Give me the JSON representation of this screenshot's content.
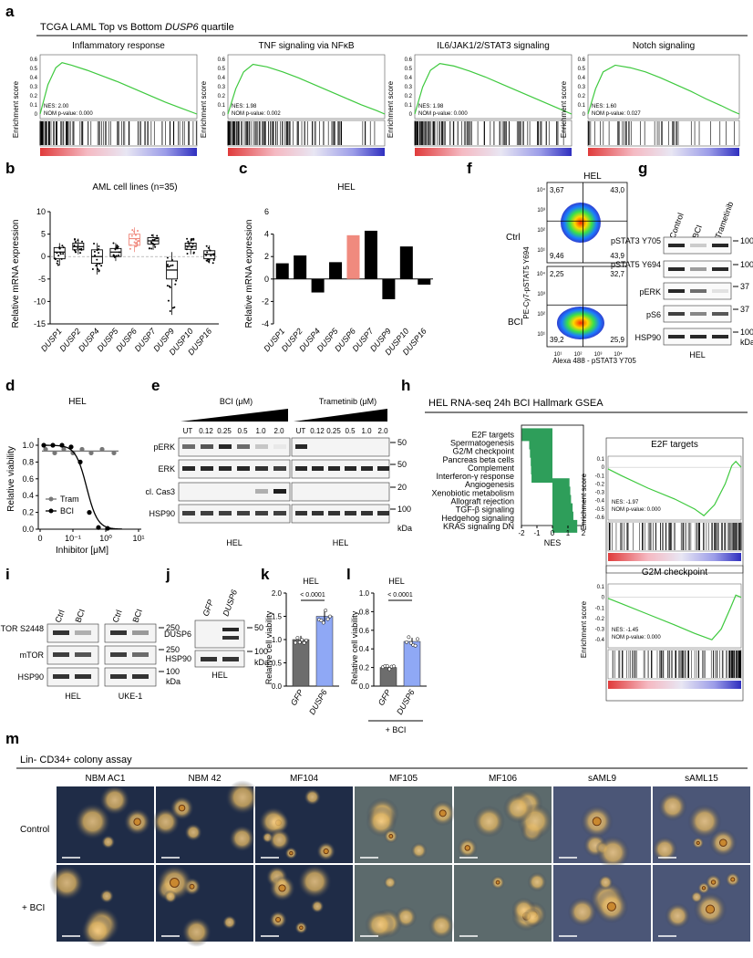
{
  "figure": {
    "panel_labels": {
      "a": "a",
      "b": "b",
      "c": "c",
      "d": "d",
      "e": "e",
      "f": "f",
      "g": "g",
      "h": "h",
      "i": "i",
      "j": "j",
      "k": "k",
      "l": "l",
      "m": "m"
    },
    "a": {
      "header_prefix": "TCGA LAML Top vs Bottom ",
      "header_gene": "DUSP6",
      "header_suffix": " quartile",
      "ylabel": "Enrichment score",
      "gsea": [
        {
          "title": "Inflammatory response",
          "nes": "NES: 2.00",
          "p": "NOM p-value: 0.000",
          "curve": [
            [
              0,
              0.0
            ],
            [
              0.05,
              0.35
            ],
            [
              0.1,
              0.55
            ],
            [
              0.14,
              0.61
            ],
            [
              0.2,
              0.58
            ],
            [
              0.3,
              0.52
            ],
            [
              0.4,
              0.45
            ],
            [
              0.5,
              0.38
            ],
            [
              0.6,
              0.3
            ],
            [
              0.7,
              0.22
            ],
            [
              0.8,
              0.14
            ],
            [
              0.9,
              0.07
            ],
            [
              1,
              0.0
            ]
          ],
          "ticks": []
        },
        {
          "title": "TNF signaling via NFκB",
          "nes": "NES: 1.98",
          "p": "NOM p-value: 0.002",
          "curve": [
            [
              0,
              0.0
            ],
            [
              0.05,
              0.3
            ],
            [
              0.1,
              0.5
            ],
            [
              0.16,
              0.59
            ],
            [
              0.25,
              0.56
            ],
            [
              0.35,
              0.5
            ],
            [
              0.45,
              0.43
            ],
            [
              0.55,
              0.35
            ],
            [
              0.65,
              0.27
            ],
            [
              0.75,
              0.19
            ],
            [
              0.85,
              0.11
            ],
            [
              0.95,
              0.04
            ],
            [
              1,
              0.0
            ]
          ]
        },
        {
          "title": "IL6/JAK1/2/STAT3 signaling",
          "nes": "NES: 1.98",
          "p": "NOM p-value: 0.000",
          "curve": [
            [
              0,
              0.0
            ],
            [
              0.05,
              0.32
            ],
            [
              0.1,
              0.52
            ],
            [
              0.16,
              0.6
            ],
            [
              0.25,
              0.57
            ],
            [
              0.35,
              0.51
            ],
            [
              0.45,
              0.44
            ],
            [
              0.55,
              0.36
            ],
            [
              0.65,
              0.28
            ],
            [
              0.75,
              0.2
            ],
            [
              0.85,
              0.12
            ],
            [
              0.95,
              0.04
            ],
            [
              1,
              0.0
            ]
          ]
        },
        {
          "title": "Notch signaling",
          "nes": "NES: 1.60",
          "p": "NOM p-value: 0.027",
          "curve": [
            [
              0,
              0.0
            ],
            [
              0.05,
              0.3
            ],
            [
              0.1,
              0.5
            ],
            [
              0.18,
              0.58
            ],
            [
              0.28,
              0.55
            ],
            [
              0.38,
              0.5
            ],
            [
              0.48,
              0.43
            ],
            [
              0.58,
              0.35
            ],
            [
              0.68,
              0.27
            ],
            [
              0.78,
              0.18
            ],
            [
              0.88,
              0.1
            ],
            [
              0.96,
              0.03
            ],
            [
              1,
              0.0
            ]
          ]
        }
      ],
      "yticks": [
        "0.6",
        "0.5",
        "0.4",
        "0.3",
        "0.2",
        "0.1",
        "0"
      ]
    },
    "b": {
      "title": "AML cell lines (n=35)",
      "ylabel": "Relative mRNA expression",
      "categories": [
        "DUSP1",
        "DUSP2",
        "DUSP4",
        "DUSP5",
        "DUSP6",
        "DUSP7",
        "DUSP9",
        "DUSP10",
        "DUSP16"
      ],
      "yticks": [
        "10",
        "5",
        "0",
        "-5",
        "-10",
        "-15"
      ],
      "highlight_color": "#f08a7e"
    },
    "c": {
      "title": "HEL",
      "ylabel": "Relative mRNA expression",
      "categories": [
        "DUSP1",
        "DUSP2",
        "DUSP4",
        "DUSP5",
        "DUSP6",
        "DUSP7",
        "DUSP9",
        "DUSP10",
        "DUSP16"
      ],
      "yticks": [
        "6",
        "4",
        "2",
        "0",
        "-2",
        "-4"
      ],
      "highlight_color": "#f08a7e"
    },
    "f": {
      "title": "HEL",
      "row1": "Ctrl",
      "row2": "BCI",
      "ylabel": "PE-Cy7-pSTAT5 Y694",
      "xlabel": "Alexa 488 - pSTAT3 Y705",
      "ctrl_quadrants": [
        "3,67",
        "43,0",
        "9,46",
        "43,9"
      ],
      "bci_quadrants": [
        "2,25",
        "32,7",
        "39,2",
        "25,9"
      ],
      "axis_ticks": [
        "10⁴",
        "10³",
        "10²",
        "10¹"
      ]
    },
    "g": {
      "columns": [
        "Control",
        "BCI",
        "Trametinib"
      ],
      "rows": [
        "pSTAT3 Y705",
        "pSTAT5 Y694",
        "pERK",
        "pS6",
        "HSP90"
      ],
      "markers": [
        "100",
        "100",
        "37",
        "37",
        "100"
      ],
      "kda": "kDa",
      "cell": "HEL"
    },
    "d": {
      "title": "HEL",
      "ylabel": "Relative viability",
      "xlabel": "Inhibitor [μM]",
      "legend": [
        "Tram",
        "BCI"
      ],
      "yticks": [
        "1.0",
        "0.8",
        "0.6",
        "0.4",
        "0.2",
        "0.0"
      ],
      "xticks": [
        "0",
        "10⁻¹",
        "10⁰",
        "10¹"
      ]
    },
    "e": {
      "bci_label": "BCI (μM)",
      "tram_label": "Trametinib (μM)",
      "lanes": [
        "UT",
        "0.12",
        "0.25",
        "0.5",
        "1.0",
        "2.0"
      ],
      "rows": [
        "pERK",
        "ERK",
        "cl. Cas3",
        "HSP90"
      ],
      "markers": [
        "50",
        "50",
        "20",
        "100"
      ],
      "kda": "kDa",
      "cell": "HEL"
    },
    "h": {
      "header": "HEL RNA-seq 24h BCI Hallmark GSEA",
      "xlabel": "NES",
      "xticks": [
        "-2",
        "-1",
        "0",
        "1",
        "2"
      ],
      "bar_color": "#2e9e5a",
      "pathways": [
        {
          "name": "E2F targets",
          "nes": -1.97
        },
        {
          "name": "Spermatogenesis",
          "nes": -1.5
        },
        {
          "name": "G2/M checkpoint",
          "nes": -1.45
        },
        {
          "name": "Pancreas beta cells",
          "nes": -1.4
        },
        {
          "name": "Complement",
          "nes": -1.38
        },
        {
          "name": "Interferon-γ response",
          "nes": -1.35
        },
        {
          "name": "Angiogenesis",
          "nes": 1.1
        },
        {
          "name": "Xenobiotic metabolism",
          "nes": 1.15
        },
        {
          "name": "Allograft rejection",
          "nes": 1.2
        },
        {
          "name": "TGF-β signaling",
          "nes": 1.3
        },
        {
          "name": "Hedgehog signaling",
          "nes": 1.35
        },
        {
          "name": "KRAS signaling DN",
          "nes": 1.6
        }
      ],
      "gsea": [
        {
          "title": "E2F targets",
          "nes": "NES: -1.97",
          "p": "NOM p-value: 0.000",
          "yticks": [
            "0.1",
            "0",
            "-0.1",
            "-0.2",
            "-0.3",
            "-0.4",
            "-0.5",
            "-0.6"
          ]
        },
        {
          "title": "G2M checkpoint",
          "nes": "NES: -1.45",
          "p": "NOM p-value: 0.000",
          "yticks": [
            "0.1",
            "0",
            "-0.1",
            "-0.2",
            "-0.3",
            "-0.4"
          ]
        }
      ],
      "ylabel": "Enrichment score"
    },
    "i": {
      "columns": [
        "Ctrl",
        "BCI",
        "Ctrl",
        "BCI"
      ],
      "rows": [
        "p-mTOR S2448",
        "mTOR",
        "HSP90"
      ],
      "markers": [
        "250",
        "250",
        "100"
      ],
      "kda": "kDa",
      "cells": [
        "HEL",
        "UKE-1"
      ]
    },
    "j": {
      "columns": [
        "GFP",
        "DUSP6"
      ],
      "rows": [
        "DUSP6",
        "HSP90"
      ],
      "markers": [
        "50",
        "100"
      ],
      "kda": "kDa",
      "cell": "HEL"
    },
    "k": {
      "title": "HEL",
      "ylabel": "Relative cell viability",
      "pval": "< 0.0001",
      "categories": [
        "GFP",
        "DUSP6"
      ],
      "values": [
        1.0,
        1.5
      ],
      "yticks": [
        "2.0",
        "1.5",
        "1.0",
        "0.5",
        "0.0"
      ]
    },
    "l": {
      "title": "HEL",
      "ylabel": "Relative cell viability",
      "pval": "< 0.0001",
      "categories": [
        "GFP",
        "DUSP6"
      ],
      "values": [
        0.2,
        0.48
      ],
      "yticks": [
        "1.0",
        "0.8",
        "0.6",
        "0.4",
        "0.2",
        "0.0"
      ],
      "footer": "+ BCI"
    },
    "m": {
      "header": "Lin- CD34+ colony assay",
      "samples": [
        "NBM AC1",
        "NBM 42",
        "MF104",
        "MF105",
        "MF106",
        "sAML9",
        "sAML15"
      ],
      "rows": [
        "Control",
        "+ BCI"
      ]
    },
    "colors": {
      "gsea_line": "#3ec93e",
      "bar_black": "#000000",
      "highlight": "#f08a7e",
      "light_blue": "#8fa8f5",
      "grey": "#777777",
      "green_bar": "#2e9e5a"
    }
  }
}
